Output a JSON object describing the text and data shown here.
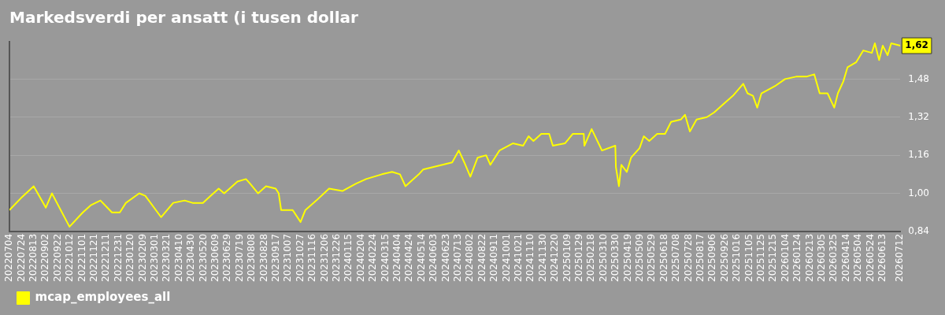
{
  "chart_data": {
    "type": "line",
    "title": "Markedsverdi per ansatt (i tusen dollar",
    "x": [
      "2022-07-04",
      "2022-07-23",
      "2022-08-13",
      "2022-09-02",
      "2022-09-12",
      "2022-10-11",
      "2022-11-02",
      "2022-11-15",
      "2022-12-01",
      "2022-12-20",
      "2023-01-02",
      "2023-01-12",
      "2023-02-03",
      "2023-02-13",
      "2023-03-11",
      "2023-03-31",
      "2023-04-19",
      "2023-05-02",
      "2023-05-19",
      "2023-06-01",
      "2023-06-14",
      "2023-06-23",
      "2023-07-02",
      "2023-07-15",
      "2023-07-29",
      "2023-08-05",
      "2023-08-18",
      "2023-08-31",
      "2023-09-16",
      "2023-09-21",
      "2023-09-25",
      "2023-10-14",
      "2023-10-27",
      "2023-11-04",
      "2023-11-22",
      "2023-12-13",
      "2024-01-04",
      "2024-01-26",
      "2024-02-12",
      "2024-03-09",
      "2024-03-26",
      "2024-04-08",
      "2024-04-17",
      "2024-05-09",
      "2024-05-16",
      "2024-06-17",
      "2024-07-03",
      "2024-07-14",
      "2024-07-23",
      "2024-08-02",
      "2024-08-14",
      "2024-08-28",
      "2024-09-04",
      "2024-09-19",
      "2024-10-11",
      "2024-10-28",
      "2024-11-06",
      "2024-11-14",
      "2024-11-27",
      "2024-12-10",
      "2024-12-16",
      "2025-01-05",
      "2025-01-18",
      "2025-02-05",
      "2025-02-06",
      "2025-02-18",
      "2025-03-07",
      "2025-03-29",
      "2025-03-30",
      "2025-04-04",
      "2025-04-08",
      "2025-04-17",
      "2025-04-24",
      "2025-05-08",
      "2025-05-15",
      "2025-05-24",
      "2025-06-06",
      "2025-06-19",
      "2025-06-29",
      "2025-07-15",
      "2025-07-22",
      "2025-07-30",
      "2025-08-10",
      "2025-08-27",
      "2025-09-08",
      "2025-09-21",
      "2025-10-09",
      "2025-10-26",
      "2025-11-02",
      "2025-11-11",
      "2025-11-18",
      "2025-11-25",
      "2025-12-17",
      "2026-01-03",
      "2026-01-21",
      "2026-02-07",
      "2026-02-20",
      "2026-03-01",
      "2026-03-14",
      "2026-03-25",
      "2026-03-31",
      "2026-04-09",
      "2026-04-16",
      "2026-04-30",
      "2026-05-12",
      "2026-05-26",
      "2026-05-31",
      "2026-06-07",
      "2026-06-13",
      "2026-06-21",
      "2026-06-27",
      "2026-07-12"
    ],
    "series": [
      {
        "name": "mcap_employees_all",
        "color": "#ffff00",
        "values": [
          0.93,
          0.98,
          1.03,
          0.94,
          1.0,
          0.86,
          0.92,
          0.95,
          0.97,
          0.92,
          0.92,
          0.96,
          1.0,
          0.99,
          0.9,
          0.96,
          0.97,
          0.96,
          0.96,
          0.99,
          1.02,
          1.0,
          1.02,
          1.05,
          1.06,
          1.04,
          1.0,
          1.03,
          1.02,
          1.0,
          0.93,
          0.93,
          0.88,
          0.93,
          0.97,
          1.02,
          1.01,
          1.04,
          1.06,
          1.08,
          1.09,
          1.08,
          1.03,
          1.08,
          1.1,
          1.12,
          1.13,
          1.18,
          1.13,
          1.07,
          1.15,
          1.16,
          1.12,
          1.18,
          1.21,
          1.2,
          1.24,
          1.22,
          1.25,
          1.25,
          1.2,
          1.21,
          1.25,
          1.25,
          1.2,
          1.27,
          1.18,
          1.2,
          1.11,
          1.03,
          1.12,
          1.09,
          1.15,
          1.19,
          1.24,
          1.22,
          1.25,
          1.25,
          1.3,
          1.31,
          1.33,
          1.26,
          1.31,
          1.32,
          1.34,
          1.37,
          1.41,
          1.46,
          1.42,
          1.41,
          1.36,
          1.42,
          1.45,
          1.48,
          1.49,
          1.49,
          1.5,
          1.42,
          1.42,
          1.36,
          1.42,
          1.47,
          1.53,
          1.55,
          1.6,
          1.59,
          1.63,
          1.56,
          1.62,
          1.58,
          1.63,
          1.62
        ]
      }
    ],
    "xlim": [
      "2022-07-04",
      "2026-07-12"
    ],
    "xticks": [
      {
        "value": "2022-07-04",
        "label": "20220704"
      },
      {
        "value": "2022-07-24",
        "label": "20220724"
      },
      {
        "value": "2022-08-13",
        "label": "20220813"
      },
      {
        "value": "2022-09-02",
        "label": "20220902"
      },
      {
        "value": "2022-09-22",
        "label": "20220922"
      },
      {
        "value": "2022-10-12",
        "label": "20221012"
      },
      {
        "value": "2022-11-01",
        "label": "20221101"
      },
      {
        "value": "2022-11-21",
        "label": "20221121"
      },
      {
        "value": "2022-12-11",
        "label": "20221211"
      },
      {
        "value": "2022-12-31",
        "label": "20221231"
      },
      {
        "value": "2023-01-20",
        "label": "20230120"
      },
      {
        "value": "2023-02-09",
        "label": "20230209"
      },
      {
        "value": "2023-03-01",
        "label": "20230301"
      },
      {
        "value": "2023-03-21",
        "label": "20230321"
      },
      {
        "value": "2023-04-10",
        "label": "20230410"
      },
      {
        "value": "2023-04-30",
        "label": "20230430"
      },
      {
        "value": "2023-05-20",
        "label": "20230520"
      },
      {
        "value": "2023-06-09",
        "label": "20230609"
      },
      {
        "value": "2023-06-29",
        "label": "20230629"
      },
      {
        "value": "2023-07-19",
        "label": "20230719"
      },
      {
        "value": "2023-08-08",
        "label": "20230808"
      },
      {
        "value": "2023-08-28",
        "label": "20230828"
      },
      {
        "value": "2023-09-17",
        "label": "20230917"
      },
      {
        "value": "2023-10-07",
        "label": "20231007"
      },
      {
        "value": "2023-10-27",
        "label": "20231027"
      },
      {
        "value": "2023-11-16",
        "label": "20231116"
      },
      {
        "value": "2023-12-06",
        "label": "20231206"
      },
      {
        "value": "2023-12-26",
        "label": "20231226"
      },
      {
        "value": "2024-01-15",
        "label": "20240115"
      },
      {
        "value": "2024-02-04",
        "label": "20240204"
      },
      {
        "value": "2024-02-24",
        "label": "20240224"
      },
      {
        "value": "2024-03-15",
        "label": "20240315"
      },
      {
        "value": "2024-04-04",
        "label": "20240404"
      },
      {
        "value": "2024-04-24",
        "label": "20240424"
      },
      {
        "value": "2024-05-14",
        "label": "20240514"
      },
      {
        "value": "2024-06-03",
        "label": "20240603"
      },
      {
        "value": "2024-06-23",
        "label": "20240623"
      },
      {
        "value": "2024-07-13",
        "label": "20240713"
      },
      {
        "value": "2024-08-02",
        "label": "20240802"
      },
      {
        "value": "2024-08-22",
        "label": "20240822"
      },
      {
        "value": "2024-09-11",
        "label": "20240911"
      },
      {
        "value": "2024-10-01",
        "label": "20241001"
      },
      {
        "value": "2024-10-21",
        "label": "20241021"
      },
      {
        "value": "2024-11-10",
        "label": "20241110"
      },
      {
        "value": "2024-11-30",
        "label": "20241130"
      },
      {
        "value": "2024-12-20",
        "label": "20241220"
      },
      {
        "value": "2025-01-09",
        "label": "20250109"
      },
      {
        "value": "2025-01-29",
        "label": "20250129"
      },
      {
        "value": "2025-02-18",
        "label": "20250218"
      },
      {
        "value": "2025-03-10",
        "label": "20250310"
      },
      {
        "value": "2025-03-30",
        "label": "20250330"
      },
      {
        "value": "2025-04-19",
        "label": "20250419"
      },
      {
        "value": "2025-05-09",
        "label": "20250509"
      },
      {
        "value": "2025-05-29",
        "label": "20250529"
      },
      {
        "value": "2025-06-18",
        "label": "20250618"
      },
      {
        "value": "2025-07-08",
        "label": "20250708"
      },
      {
        "value": "2025-07-28",
        "label": "20250728"
      },
      {
        "value": "2025-08-17",
        "label": "20250817"
      },
      {
        "value": "2025-09-06",
        "label": "20250906"
      },
      {
        "value": "2025-09-26",
        "label": "20250926"
      },
      {
        "value": "2025-10-16",
        "label": "20251016"
      },
      {
        "value": "2025-11-05",
        "label": "20251105"
      },
      {
        "value": "2025-11-25",
        "label": "20251125"
      },
      {
        "value": "2025-12-15",
        "label": "20251215"
      },
      {
        "value": "2026-01-04",
        "label": "20260104"
      },
      {
        "value": "2026-01-24",
        "label": "20260124"
      },
      {
        "value": "2026-02-13",
        "label": "20260213"
      },
      {
        "value": "2026-03-05",
        "label": "20260305"
      },
      {
        "value": "2026-03-25",
        "label": "20260325"
      },
      {
        "value": "2026-04-14",
        "label": "20260414"
      },
      {
        "value": "2026-05-04",
        "label": "20260504"
      },
      {
        "value": "2026-05-24",
        "label": "20260524"
      },
      {
        "value": "2026-06-13",
        "label": "20260613"
      },
      {
        "value": "2026-07-12",
        "label": "20260712"
      }
    ],
    "ylim": [
      0.84,
      1.64
    ],
    "yticks": [
      {
        "value": 0.84,
        "label": "0,84"
      },
      {
        "value": 1.0,
        "label": "1,00"
      },
      {
        "value": 1.16,
        "label": "1,16"
      },
      {
        "value": 1.32,
        "label": "1,32"
      },
      {
        "value": 1.48,
        "label": "1,48"
      }
    ],
    "annotations": [
      {
        "text": "1,62",
        "x": "2026-07-12",
        "y": 1.62
      }
    ],
    "grid": "y",
    "legend": "bottom",
    "marker": "none",
    "line_style": "solid"
  }
}
